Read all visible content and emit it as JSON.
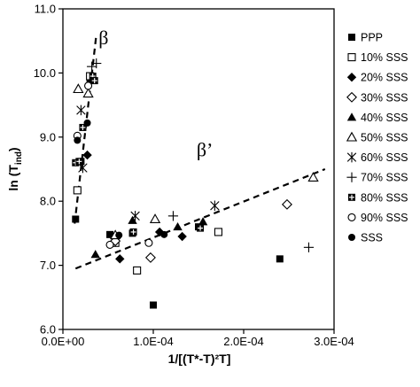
{
  "chart_data": {
    "type": "scatter",
    "title": "",
    "xlabel": "1/[(T*-T)²T]",
    "ylabel": "ln (T",
    "ylabel_sub": "ind",
    "ylabel_close": ")",
    "xlim": [
      0,
      0.0003
    ],
    "ylim": [
      6.0,
      11.0
    ],
    "x_ticks": [
      0,
      0.0001,
      0.0002,
      0.0003
    ],
    "x_tick_labels": [
      "0.0E+00",
      "1.0E-04",
      "2.0E-04",
      "3.0E-04"
    ],
    "y_ticks": [
      6.0,
      7.0,
      8.0,
      9.0,
      10.0,
      11.0
    ],
    "y_tick_labels": [
      "6.0",
      "7.0",
      "8.0",
      "9.0",
      "10.0",
      "11.0"
    ],
    "grid": false,
    "legend_position": "right",
    "annotations": [
      {
        "text": "β",
        "x": 4.5e-05,
        "y": 10.45
      },
      {
        "text": "β’",
        "x": 0.000157,
        "y": 8.7
      }
    ],
    "trendlines": [
      {
        "name": "β",
        "x": [
          1.3e-05,
          3.7e-05
        ],
        "y": [
          7.65,
          10.6
        ]
      },
      {
        "name": "β’",
        "x": [
          1.4e-05,
          0.00029
        ],
        "y": [
          6.95,
          8.5
        ]
      }
    ],
    "series": [
      {
        "name": "PPP",
        "marker": "square-filled",
        "points": [
          [
            1.4e-05,
            7.72
          ],
          [
            2e-05,
            8.62
          ],
          [
            3e-05,
            9.9
          ],
          [
            5.2e-05,
            7.48
          ],
          [
            7.7e-05,
            7.5
          ],
          [
            0.0001,
            6.38
          ],
          [
            0.00015,
            7.6
          ],
          [
            0.00024,
            7.1
          ]
        ]
      },
      {
        "name": "10% SSS",
        "marker": "square-open",
        "points": [
          [
            1.6e-05,
            8.17
          ],
          [
            3e-05,
            9.95
          ],
          [
            5.8e-05,
            7.35
          ],
          [
            8.2e-05,
            6.92
          ],
          [
            0.000172,
            7.52
          ]
        ]
      },
      {
        "name": "20% SSS",
        "marker": "diamond-filled",
        "points": [
          [
            2.7e-05,
            8.72
          ],
          [
            6.3e-05,
            7.1
          ],
          [
            0.000107,
            7.52
          ],
          [
            0.000132,
            7.45
          ]
        ]
      },
      {
        "name": "30% SSS",
        "marker": "diamond-open",
        "points": [
          [
            5.8e-05,
            7.38
          ],
          [
            9.7e-05,
            7.12
          ],
          [
            0.000248,
            7.95
          ]
        ]
      },
      {
        "name": "40% SSS",
        "marker": "triangle-filled",
        "points": [
          [
            3.6e-05,
            7.17
          ],
          [
            7.7e-05,
            7.7
          ],
          [
            0.000127,
            7.6
          ],
          [
            0.000155,
            7.68
          ]
        ]
      },
      {
        "name": "50% SSS",
        "marker": "triangle-open",
        "points": [
          [
            1.7e-05,
            9.75
          ],
          [
            2.8e-05,
            9.68
          ],
          [
            5.8e-05,
            7.47
          ],
          [
            0.000102,
            7.72
          ],
          [
            0.000277,
            8.37
          ]
        ]
      },
      {
        "name": "60% SSS",
        "marker": "asterisk",
        "points": [
          [
            2e-05,
            9.42
          ],
          [
            2.2e-05,
            8.52
          ],
          [
            8e-05,
            7.77
          ],
          [
            0.000168,
            7.93
          ]
        ]
      },
      {
        "name": "70% SSS",
        "marker": "plus",
        "points": [
          [
            3.2e-05,
            10.1
          ],
          [
            3.7e-05,
            10.15
          ],
          [
            0.000122,
            7.77
          ],
          [
            0.000272,
            7.28
          ]
        ]
      },
      {
        "name": "80% SSS",
        "marker": "square-plus",
        "points": [
          [
            1.4e-05,
            8.6
          ],
          [
            1.8e-05,
            8.62
          ],
          [
            2.2e-05,
            9.15
          ],
          [
            3.3e-05,
            9.95
          ],
          [
            3.5e-05,
            9.88
          ],
          [
            7.8e-05,
            7.52
          ],
          [
            0.000152,
            7.58
          ]
        ]
      },
      {
        "name": "90% SSS",
        "marker": "circle-open",
        "points": [
          [
            1.6e-05,
            9.02
          ],
          [
            2.8e-05,
            9.8
          ],
          [
            5.2e-05,
            7.32
          ],
          [
            9.5e-05,
            7.35
          ]
        ]
      },
      {
        "name": "SSS",
        "marker": "circle-filled",
        "points": [
          [
            1.6e-05,
            8.95
          ],
          [
            2.7e-05,
            9.22
          ],
          [
            6.2e-05,
            7.47
          ],
          [
            0.000112,
            7.48
          ]
        ]
      }
    ]
  }
}
